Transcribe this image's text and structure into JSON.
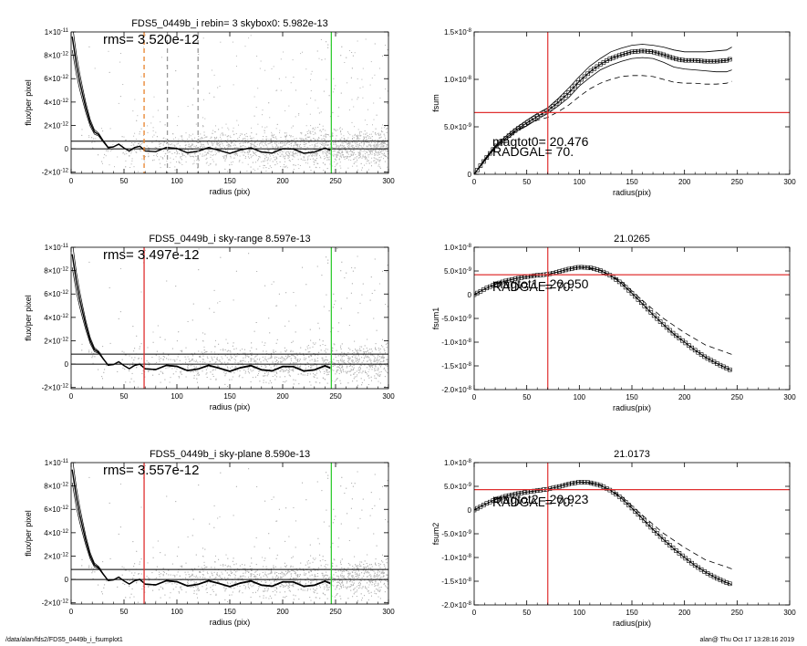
{
  "footer": {
    "path": "/data/alan/fds2/FDS5_0449b_i_fsumplot1",
    "stamp": "alan@  Thu Oct 17 13:28:16 2019"
  },
  "colors": {
    "axis": "#000000",
    "scatter": "#b4b4b4",
    "red": "#e03030",
    "green": "#33cc33",
    "orange": "#e8822a"
  },
  "chart_data": [
    {
      "id": "left1",
      "type": "scatter",
      "title": "FDS5_0449b_i rebin= 3    skybox0:  5.982e-13",
      "annotation": "rms= 3.520e-12",
      "xlabel": "radius (pix)",
      "ylabel": "flux/per pixel",
      "xlim": [
        0,
        300
      ],
      "ylim": [
        -2.1e-12,
        1e-11
      ],
      "xticks": [
        0,
        50,
        100,
        150,
        200,
        250,
        300
      ],
      "yticks": [
        {
          "v": 1e-11,
          "m": "1×10",
          "e": "-11"
        },
        {
          "v": 8e-12,
          "m": "8×10",
          "e": "-12"
        },
        {
          "v": 6e-12,
          "m": "6×10",
          "e": "-12"
        },
        {
          "v": 4e-12,
          "m": "4×10",
          "e": "-12"
        },
        {
          "v": 2e-12,
          "m": "2×10",
          "e": "-12"
        },
        {
          "v": 0,
          "m": "0",
          "e": ""
        },
        {
          "v": -2e-12,
          "m": "-2×10",
          "e": "-12"
        }
      ],
      "sky_upper": 6.5e-13,
      "vlines": [
        {
          "x": 69,
          "color": "orange",
          "style": "dashed"
        },
        {
          "x": 91,
          "color": "gray",
          "style": "dashed"
        },
        {
          "x": 120,
          "color": "gray",
          "style": "dashed"
        },
        {
          "x": 246,
          "color": "green",
          "style": "solid"
        }
      ],
      "profile": {
        "r": [
          1,
          3,
          5,
          8,
          11,
          14,
          18,
          22,
          26,
          30,
          35,
          40,
          45,
          50,
          55,
          60,
          65,
          70,
          80,
          90,
          100,
          110,
          120,
          130,
          140,
          150,
          160,
          170,
          180,
          190,
          200,
          210,
          220,
          230,
          240,
          245
        ],
        "v": [
          9.6e-12,
          8.4e-12,
          7.2e-12,
          5.8e-12,
          4.6e-12,
          3.5e-12,
          2.4e-12,
          1.6e-12,
          1e-12,
          6e-13,
          3.5e-13,
          2e-13,
          1.5e-13,
          1e-13,
          5e-14,
          2e-14,
          0,
          -3e-14,
          -6e-14,
          -8e-14,
          -1e-13,
          -1.2e-13,
          -1.3e-13,
          -1.4e-13,
          -1.4e-13,
          -1.5e-13,
          -1.5e-13,
          -1.5e-13,
          -1.6e-13,
          -1.6e-13,
          -1.6e-13,
          -1.7e-13,
          -1.7e-13,
          -1.7e-13,
          -1.7e-13,
          -1.7e-13
        ]
      }
    },
    {
      "id": "right1",
      "type": "line",
      "title": "",
      "annotations": [
        "magtot0=  20.476",
        "RADGAL=     70."
      ],
      "xlabel": "radius(pix)",
      "ylabel": "fsum",
      "xlim": [
        0,
        300
      ],
      "ylim": [
        0,
        1.5e-08
      ],
      "xticks": [
        0,
        50,
        100,
        150,
        200,
        250,
        300
      ],
      "yticks": [
        {
          "v": 1.5e-08,
          "m": "1.5×10",
          "e": "-8"
        },
        {
          "v": 1e-08,
          "m": "1.0×10",
          "e": "-8"
        },
        {
          "v": 5e-09,
          "m": "5.0×10",
          "e": "-9"
        },
        {
          "v": 0,
          "m": "0",
          "e": ""
        }
      ],
      "hline": 6.5e-09,
      "vline": 70,
      "series": [
        {
          "style": "markers",
          "r": [
            0,
            10,
            20,
            30,
            40,
            50,
            60,
            70,
            80,
            90,
            100,
            110,
            120,
            130,
            140,
            150,
            160,
            170,
            180,
            190,
            200,
            210,
            220,
            230,
            240,
            245
          ],
          "v": [
            0,
            1.5e-09,
            2.9e-09,
            3.8e-09,
            4.7e-09,
            5.4e-09,
            6.1e-09,
            6.7e-09,
            7.6e-09,
            8.6e-09,
            9.8e-09,
            1.08e-08,
            1.16e-08,
            1.22e-08,
            1.26e-08,
            1.29e-08,
            1.3e-08,
            1.29e-08,
            1.26e-08,
            1.22e-08,
            1.2e-08,
            1.2e-08,
            1.19e-08,
            1.19e-08,
            1.2e-08,
            1.22e-08
          ]
        },
        {
          "style": "solid",
          "r": [
            0,
            10,
            20,
            30,
            40,
            50,
            60,
            70,
            80,
            90,
            100,
            110,
            120,
            130,
            140,
            150,
            160,
            170,
            180,
            190,
            200,
            210,
            220,
            230,
            240,
            245
          ],
          "v": [
            0,
            1.6e-09,
            3e-09,
            4e-09,
            4.9e-09,
            5.7e-09,
            6.4e-09,
            7e-09,
            8e-09,
            9.1e-09,
            1.03e-08,
            1.14e-08,
            1.22e-08,
            1.29e-08,
            1.33e-08,
            1.36e-08,
            1.37e-08,
            1.36e-08,
            1.34e-08,
            1.31e-08,
            1.29e-08,
            1.29e-08,
            1.29e-08,
            1.3e-08,
            1.31e-08,
            1.34e-08
          ]
        },
        {
          "style": "solid",
          "r": [
            0,
            10,
            20,
            30,
            40,
            50,
            60,
            70,
            80,
            90,
            100,
            110,
            120,
            130,
            140,
            150,
            160,
            170,
            180,
            190,
            200,
            210,
            220,
            230,
            240,
            245
          ],
          "v": [
            0,
            1.4e-09,
            2.8e-09,
            3.6e-09,
            4.5e-09,
            5.1e-09,
            5.8e-09,
            6.4e-09,
            7.2e-09,
            8.1e-09,
            9.3e-09,
            1.02e-08,
            1.1e-08,
            1.15e-08,
            1.19e-08,
            1.22e-08,
            1.23e-08,
            1.22e-08,
            1.18e-08,
            1.13e-08,
            1.11e-08,
            1.1e-08,
            1.09e-08,
            1.08e-08,
            1.08e-08,
            1.1e-08
          ]
        },
        {
          "style": "dashed",
          "r": [
            0,
            10,
            20,
            30,
            40,
            50,
            60,
            70,
            80,
            90,
            100,
            110,
            120,
            130,
            140,
            150,
            160,
            170,
            180,
            190,
            200,
            210,
            220,
            230,
            240,
            245
          ],
          "v": [
            0,
            1.5e-09,
            2.9e-09,
            3.8e-09,
            4.6e-09,
            5.2e-09,
            5.7e-09,
            6e-09,
            6.6e-09,
            7.3e-09,
            8.2e-09,
            9e-09,
            9.6e-09,
            1e-08,
            1.03e-08,
            1.04e-08,
            1.04e-08,
            1.03e-08,
            1e-08,
            9.7e-09,
            9.6e-09,
            9.6e-09,
            9.5e-09,
            9.5e-09,
            9.6e-09,
            9.8e-09
          ]
        }
      ]
    },
    {
      "id": "left2",
      "type": "scatter",
      "title": "FDS5_0449b_i sky-range  8.597e-13",
      "annotation": "rms= 3.497e-12",
      "xlabel": "radius (pix)",
      "ylabel": "flux/per pixel",
      "xlim": [
        0,
        300
      ],
      "ylim": [
        -2.1e-12,
        1e-11
      ],
      "xticks": [
        0,
        50,
        100,
        150,
        200,
        250,
        300
      ],
      "yticks": [
        {
          "v": 1e-11,
          "m": "1×10",
          "e": "-11"
        },
        {
          "v": 8e-12,
          "m": "8×10",
          "e": "-12"
        },
        {
          "v": 6e-12,
          "m": "6×10",
          "e": "-12"
        },
        {
          "v": 4e-12,
          "m": "4×10",
          "e": "-12"
        },
        {
          "v": 2e-12,
          "m": "2×10",
          "e": "-12"
        },
        {
          "v": 0,
          "m": "0",
          "e": ""
        },
        {
          "v": -2e-12,
          "m": "-2×10",
          "e": "-12"
        }
      ],
      "sky_upper": 8.6e-13,
      "vlines": [
        {
          "x": 69,
          "color": "red",
          "style": "solid"
        },
        {
          "x": 246,
          "color": "green",
          "style": "solid"
        }
      ],
      "profile": {
        "r": [
          1,
          3,
          5,
          8,
          11,
          14,
          18,
          22,
          26,
          30,
          35,
          40,
          45,
          50,
          55,
          60,
          65,
          70,
          80,
          90,
          100,
          110,
          120,
          130,
          140,
          150,
          160,
          170,
          180,
          190,
          200,
          210,
          220,
          230,
          240,
          245
        ],
        "v": [
          9.4e-12,
          8.2e-12,
          7e-12,
          5.6e-12,
          4.4e-12,
          3.3e-12,
          2.2e-12,
          1.4e-12,
          8e-13,
          4e-13,
          1.5e-13,
          0,
          -5e-14,
          -1e-13,
          -1.5e-13,
          -2e-13,
          -2.2e-13,
          -2.5e-13,
          -2.8e-13,
          -3e-13,
          -3.2e-13,
          -3.3e-13,
          -3.4e-13,
          -3.5e-13,
          -3.5e-13,
          -3.6e-13,
          -3.6e-13,
          -3.6e-13,
          -3.7e-13,
          -3.7e-13,
          -3.7e-13,
          -3.7e-13,
          -3.8e-13,
          -3.8e-13,
          -3.8e-13,
          -3.8e-13
        ]
      }
    },
    {
      "id": "right2",
      "type": "line",
      "title": "21.0265",
      "annotations": [
        "magtot1=  20.950",
        "RADGAL=     70."
      ],
      "xlabel": "radius(pix)",
      "ylabel": "fsum1",
      "xlim": [
        0,
        300
      ],
      "ylim": [
        -2e-08,
        1e-08
      ],
      "xticks": [
        0,
        50,
        100,
        150,
        200,
        250,
        300
      ],
      "yticks": [
        {
          "v": 1e-08,
          "m": "1.0×10",
          "e": "-8"
        },
        {
          "v": 5e-09,
          "m": "5.0×10",
          "e": "-9"
        },
        {
          "v": 0,
          "m": "0",
          "e": ""
        },
        {
          "v": -5e-09,
          "m": "-5.0×10",
          "e": "-9"
        },
        {
          "v": -1e-08,
          "m": "-1.0×10",
          "e": "-8"
        },
        {
          "v": -1.5e-08,
          "m": "-1.5×10",
          "e": "-8"
        },
        {
          "v": -2e-08,
          "m": "-2.0×10",
          "e": "-8"
        }
      ],
      "hline": 4.2e-09,
      "vline": 70,
      "series": [
        {
          "style": "markers",
          "r": [
            0,
            10,
            20,
            30,
            40,
            50,
            60,
            70,
            80,
            90,
            100,
            110,
            120,
            130,
            140,
            150,
            160,
            170,
            180,
            190,
            200,
            210,
            220,
            230,
            240,
            245
          ],
          "v": [
            0,
            1.2e-09,
            2.2e-09,
            2.9e-09,
            3.4e-09,
            3.8e-09,
            4.1e-09,
            4.3e-09,
            4.8e-09,
            5.4e-09,
            5.8e-09,
            5.7e-09,
            5.1e-09,
            4e-09,
            2.4e-09,
            3e-10,
            -1.9e-09,
            -4.2e-09,
            -6.3e-09,
            -8.3e-09,
            -1e-08,
            -1.17e-08,
            -1.32e-08,
            -1.44e-08,
            -1.55e-08,
            -1.6e-08
          ]
        },
        {
          "style": "dashed",
          "r": [
            100,
            120,
            140,
            160,
            180,
            200,
            220,
            240,
            245
          ],
          "v": [
            5.8e-09,
            5.2e-09,
            2.8e-09,
            -1.2e-09,
            -5e-09,
            -8e-09,
            -1.06e-08,
            -1.22e-08,
            -1.26e-08
          ]
        }
      ]
    },
    {
      "id": "left3",
      "type": "scatter",
      "title": "FDS5_0449b_i sky-plane  8.590e-13",
      "annotation": "rms= 3.557e-12",
      "xlabel": "radius (pix)",
      "ylabel": "flux/per pixel",
      "xlim": [
        0,
        300
      ],
      "ylim": [
        -2.1e-12,
        1e-11
      ],
      "xticks": [
        0,
        50,
        100,
        150,
        200,
        250,
        300
      ],
      "yticks": [
        {
          "v": 1e-11,
          "m": "1×10",
          "e": "-11"
        },
        {
          "v": 8e-12,
          "m": "8×10",
          "e": "-12"
        },
        {
          "v": 6e-12,
          "m": "6×10",
          "e": "-12"
        },
        {
          "v": 4e-12,
          "m": "4×10",
          "e": "-12"
        },
        {
          "v": 2e-12,
          "m": "2×10",
          "e": "-12"
        },
        {
          "v": 0,
          "m": "0",
          "e": ""
        },
        {
          "v": -2e-12,
          "m": "-2×10",
          "e": "-12"
        }
      ],
      "sky_upper": 8.6e-13,
      "vlines": [
        {
          "x": 69,
          "color": "red",
          "style": "solid"
        },
        {
          "x": 246,
          "color": "green",
          "style": "solid"
        }
      ],
      "profile": {
        "r": [
          1,
          3,
          5,
          8,
          11,
          14,
          18,
          22,
          26,
          30,
          35,
          40,
          45,
          50,
          55,
          60,
          65,
          70,
          80,
          90,
          100,
          110,
          120,
          130,
          140,
          150,
          160,
          170,
          180,
          190,
          200,
          210,
          220,
          230,
          240,
          245
        ],
        "v": [
          9.4e-12,
          8.2e-12,
          7e-12,
          5.6e-12,
          4.4e-12,
          3.3e-12,
          2.2e-12,
          1.4e-12,
          8e-13,
          4e-13,
          1.5e-13,
          0,
          -5e-14,
          -1e-13,
          -1.5e-13,
          -2e-13,
          -2.2e-13,
          -2.5e-13,
          -2.8e-13,
          -3e-13,
          -3.2e-13,
          -3.3e-13,
          -3.4e-13,
          -3.5e-13,
          -3.5e-13,
          -3.6e-13,
          -3.6e-13,
          -3.6e-13,
          -3.7e-13,
          -3.7e-13,
          -3.7e-13,
          -3.7e-13,
          -3.8e-13,
          -3.8e-13,
          -3.8e-13,
          -3.8e-13
        ]
      }
    },
    {
      "id": "right3",
      "type": "line",
      "title": "21.0173",
      "annotations": [
        "magtot2=  20.923",
        "RADGAL=     70."
      ],
      "xlabel": "radius(pix)",
      "ylabel": "fsum2",
      "xlim": [
        0,
        300
      ],
      "ylim": [
        -2e-08,
        1e-08
      ],
      "xticks": [
        0,
        50,
        100,
        150,
        200,
        250,
        300
      ],
      "yticks": [
        {
          "v": 1e-08,
          "m": "1.0×10",
          "e": "-8"
        },
        {
          "v": 5e-09,
          "m": "5.0×10",
          "e": "-9"
        },
        {
          "v": 0,
          "m": "0",
          "e": ""
        },
        {
          "v": -5e-09,
          "m": "-5.0×10",
          "e": "-9"
        },
        {
          "v": -1e-08,
          "m": "-1.0×10",
          "e": "-8"
        },
        {
          "v": -1.5e-08,
          "m": "-1.5×10",
          "e": "-8"
        },
        {
          "v": -2e-08,
          "m": "-2.0×10",
          "e": "-8"
        }
      ],
      "hline": 4.3e-09,
      "vline": 70,
      "series": [
        {
          "style": "markers",
          "r": [
            0,
            10,
            20,
            30,
            40,
            50,
            60,
            70,
            80,
            90,
            100,
            110,
            120,
            130,
            140,
            150,
            160,
            170,
            180,
            190,
            200,
            210,
            220,
            230,
            240,
            245
          ],
          "v": [
            0,
            1.2e-09,
            2.2e-09,
            2.9e-09,
            3.4e-09,
            3.8e-09,
            4.1e-09,
            4.4e-09,
            4.9e-09,
            5.5e-09,
            5.9e-09,
            5.8e-09,
            5.2e-09,
            4.1e-09,
            2.5e-09,
            4e-10,
            -1.8e-09,
            -4.1e-09,
            -6.2e-09,
            -8.2e-09,
            -1e-08,
            -1.17e-08,
            -1.31e-08,
            -1.43e-08,
            -1.53e-08,
            -1.57e-08
          ]
        },
        {
          "style": "dashed",
          "r": [
            100,
            120,
            140,
            160,
            180,
            200,
            220,
            240,
            245
          ],
          "v": [
            5.9e-09,
            5.3e-09,
            2.9e-09,
            -1.1e-09,
            -4.9e-09,
            -7.9e-09,
            -1.05e-08,
            -1.2e-08,
            -1.24e-08
          ]
        }
      ]
    }
  ]
}
